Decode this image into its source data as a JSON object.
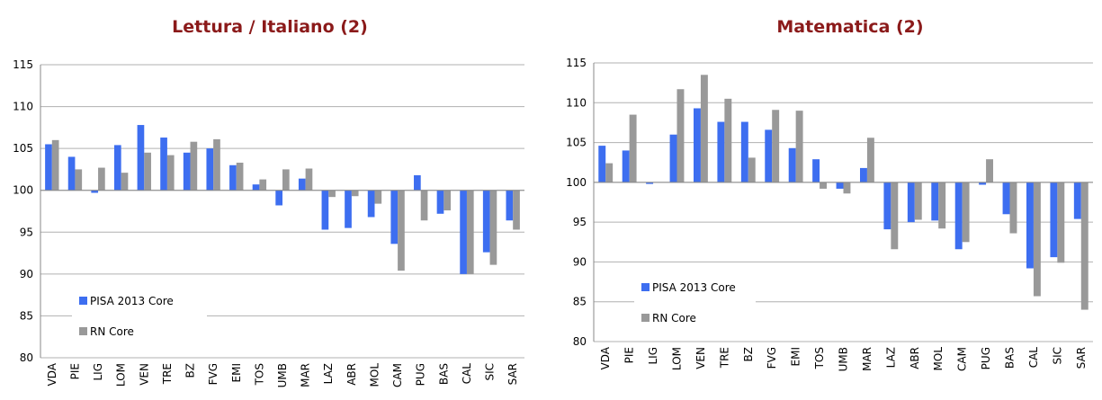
{
  "chart_data": [
    {
      "type": "bar",
      "title": "Lettura / Italiano (2)",
      "categories": [
        "VDA",
        "PIE",
        "LIG",
        "LOM",
        "VEN",
        "TRE",
        "BZ",
        "FVG",
        "EMI",
        "TOS",
        "UMB",
        "MAR",
        "LAZ",
        "ABR",
        "MOL",
        "CAM",
        "PUG",
        "BAS",
        "CAL",
        "SIC",
        "SAR"
      ],
      "series": [
        {
          "name": "PISA 2013 Core",
          "color": "#3d6ef0",
          "values": [
            105.5,
            104,
            99.7,
            105.4,
            107.8,
            106.3,
            104.5,
            105,
            103,
            100.7,
            98.2,
            101.4,
            95.3,
            95.5,
            96.8,
            93.6,
            101.8,
            97.2,
            90,
            92.6,
            96.4
          ]
        },
        {
          "name": "RN Core",
          "color": "#999999",
          "values": [
            106,
            102.5,
            102.7,
            102.1,
            104.5,
            104.2,
            105.8,
            106.1,
            103.3,
            101.3,
            102.5,
            102.6,
            99.2,
            99.3,
            98.4,
            90.4,
            96.4,
            97.6,
            90,
            91.1,
            95.3
          ]
        }
      ],
      "ylim": [
        80,
        115
      ],
      "yticks": [
        80,
        85,
        90,
        95,
        100,
        105,
        110,
        115
      ],
      "bar_base": 100,
      "grid": true,
      "legend": "lower-left"
    },
    {
      "type": "bar",
      "title": "Matematica (2)",
      "categories": [
        "VDA",
        "PIE",
        "LIG",
        "LOM",
        "VEN",
        "TRE",
        "BZ",
        "FVG",
        "EMI",
        "TOS",
        "UMB",
        "MAR",
        "LAZ",
        "ABR",
        "MOL",
        "CAM",
        "PUG",
        "BAS",
        "CAL",
        "SIC",
        "SAR"
      ],
      "series": [
        {
          "name": "PISA 2013 Core",
          "color": "#3d6ef0",
          "values": [
            104.6,
            104,
            99.8,
            106,
            109.3,
            107.6,
            107.6,
            106.6,
            104.3,
            102.9,
            99.2,
            101.8,
            94.1,
            95,
            95.2,
            91.6,
            99.7,
            96,
            89.2,
            90.6,
            95.4
          ]
        },
        {
          "name": "RN Core",
          "color": "#999999",
          "values": [
            102.4,
            108.5,
            100,
            111.7,
            113.5,
            110.5,
            103.1,
            109.1,
            109,
            99.2,
            98.6,
            105.6,
            91.6,
            95.3,
            94.2,
            92.5,
            102.9,
            93.6,
            85.7,
            89.9,
            84
          ]
        }
      ],
      "ylim": [
        80,
        115
      ],
      "yticks": [
        80,
        85,
        90,
        95,
        100,
        105,
        110,
        115
      ],
      "bar_base": 100,
      "grid": true,
      "legend": "lower-left"
    }
  ]
}
